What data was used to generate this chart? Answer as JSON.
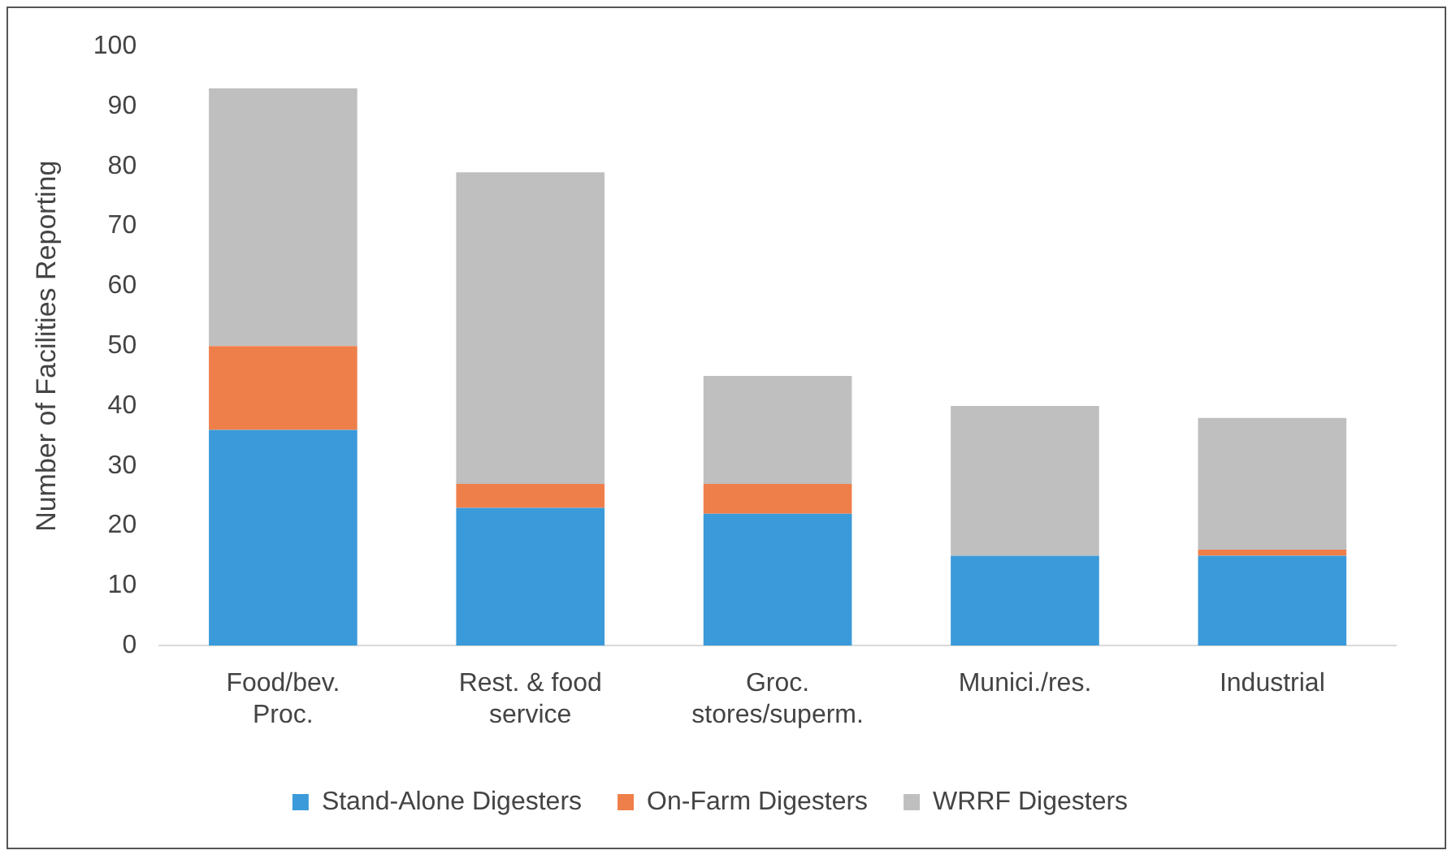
{
  "chart_data": {
    "type": "bar",
    "stacked": true,
    "ylabel": "Number of Facilities Reporting",
    "categories": [
      "Food/bev.\nProc.",
      "Rest. & food\nservice",
      "Groc.\nstores/superm.",
      "Munici./res.",
      "Industrial"
    ],
    "series": [
      {
        "name": "Stand-Alone Digesters",
        "color": "#3b9ad9",
        "values": [
          36,
          23,
          22,
          15,
          15
        ]
      },
      {
        "name": "On-Farm Digesters",
        "color": "#ef7f4a",
        "values": [
          14,
          4,
          5,
          0,
          1
        ]
      },
      {
        "name": "WRRF Digesters",
        "color": "#bfbfbf",
        "values": [
          43,
          52,
          18,
          25,
          22
        ]
      }
    ],
    "ylim": [
      0,
      100
    ],
    "yticks": [
      0,
      10,
      20,
      30,
      40,
      50,
      60,
      70,
      80,
      90,
      100
    ],
    "grid": false,
    "legend": "bottom"
  }
}
